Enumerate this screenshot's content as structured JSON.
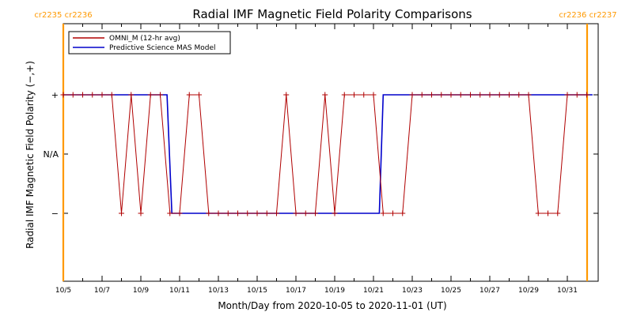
{
  "chart_data": {
    "type": "line",
    "title": "Radial IMF Magnetic Field Polarity Comparisons",
    "xlabel": "Month/Day from 2020-10-05 to 2020-11-01 (UT)",
    "ylabel": "Radial IMF Magnetic Field Polarity (−,+)",
    "x_tick_labels": [
      "10/5",
      "10/7",
      "10/9",
      "10/11",
      "10/13",
      "10/15",
      "10/17",
      "10/19",
      "10/21",
      "10/23",
      "10/25",
      "10/27",
      "10/29",
      "10/31"
    ],
    "y_tick_labels": [
      "+",
      "N/A",
      "−"
    ],
    "ylim": [
      -2,
      2
    ],
    "carrington_labels": {
      "left": "cr2235 cr2236",
      "right": "cr2236 cr2237"
    },
    "carrington_markers_day": [
      0,
      27.3
    ],
    "legend_position": "top-left",
    "colors": {
      "omni": "#b00000",
      "mas": "#0000cc",
      "carrington": "#ff9900",
      "axis": "#000000"
    },
    "series": [
      {
        "name": "OMNI_M (12-hr avg)",
        "marker": "plus",
        "points": [
          [
            0.0,
            1
          ],
          [
            0.5,
            1
          ],
          [
            1.0,
            1
          ],
          [
            1.5,
            1
          ],
          [
            2.0,
            1
          ],
          [
            2.5,
            1
          ],
          [
            3.0,
            -1
          ],
          [
            3.5,
            1
          ],
          [
            4.0,
            -1
          ],
          [
            4.5,
            1
          ],
          [
            5.0,
            1
          ],
          [
            5.5,
            -1
          ],
          [
            6.0,
            -1
          ],
          [
            6.5,
            1
          ],
          [
            7.0,
            1
          ],
          [
            7.5,
            -1
          ],
          [
            8.0,
            -1
          ],
          [
            8.5,
            -1
          ],
          [
            9.0,
            -1
          ],
          [
            9.5,
            -1
          ],
          [
            10.0,
            -1
          ],
          [
            10.5,
            -1
          ],
          [
            11.0,
            -1
          ],
          [
            11.5,
            1
          ],
          [
            12.0,
            -1
          ],
          [
            12.5,
            -1
          ],
          [
            13.0,
            -1
          ],
          [
            13.5,
            1
          ],
          [
            14.0,
            -1
          ],
          [
            14.5,
            1
          ],
          [
            15.0,
            1
          ],
          [
            15.5,
            1
          ],
          [
            16.0,
            1
          ],
          [
            16.5,
            -1
          ],
          [
            17.0,
            -1
          ],
          [
            17.5,
            -1
          ],
          [
            18.0,
            1
          ],
          [
            18.5,
            1
          ],
          [
            19.0,
            1
          ],
          [
            19.5,
            1
          ],
          [
            20.0,
            1
          ],
          [
            20.5,
            1
          ],
          [
            21.0,
            1
          ],
          [
            21.5,
            1
          ],
          [
            22.0,
            1
          ],
          [
            22.5,
            1
          ],
          [
            23.0,
            1
          ],
          [
            23.5,
            1
          ],
          [
            24.0,
            1
          ],
          [
            24.5,
            -1
          ],
          [
            25.0,
            -1
          ],
          [
            25.5,
            -1
          ],
          [
            26.0,
            1
          ],
          [
            26.5,
            1
          ],
          [
            27.0,
            1
          ]
        ]
      },
      {
        "name": "Predictive Science MAS Model",
        "marker": "none",
        "points": [
          [
            0.0,
            1
          ],
          [
            5.35,
            1
          ],
          [
            5.6,
            -1
          ],
          [
            16.3,
            -1
          ],
          [
            16.5,
            1
          ],
          [
            27.3,
            1
          ]
        ]
      }
    ]
  }
}
